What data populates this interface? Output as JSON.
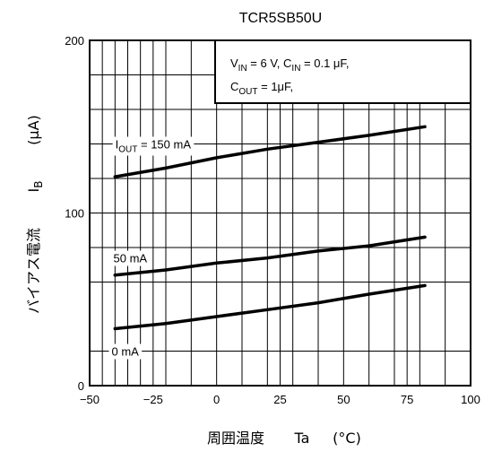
{
  "chart_data": {
    "type": "line",
    "title": "TCR5SB50U",
    "xlabel": "周囲温度 Ta (°C)",
    "xlabel_parts": [
      "周囲温度",
      "Ta",
      "(°C)"
    ],
    "ylabel": "バイアス電流 IB (μA)",
    "ylabel_parts": {
      "jp": "バイアス電流",
      "sym": "I",
      "sub": "B",
      "unit": "(μA)"
    },
    "xlim": [
      -50,
      100
    ],
    "ylim": [
      0,
      200
    ],
    "x_ticks": [
      -50,
      -25,
      0,
      25,
      50,
      75,
      100
    ],
    "x_tick_labels": [
      "−50",
      "−25",
      "0",
      "25",
      "50",
      "75",
      "100"
    ],
    "y_tick_labels": [
      {
        "value": 0,
        "label": "0"
      },
      {
        "value": 100,
        "label": "100"
      },
      {
        "value": 200,
        "label": "200"
      }
    ],
    "y_grid_values": [
      20,
      60,
      80,
      120,
      140,
      160,
      180
    ],
    "x_grid_values": [
      -45,
      -40,
      -35,
      -30,
      -25,
      -20,
      -10,
      0,
      10,
      20,
      25,
      30,
      40,
      50,
      60,
      70,
      75,
      80,
      90
    ],
    "conditions": [
      {
        "parts": [
          [
            "V",
            ""
          ],
          [
            "IN",
            "sub"
          ],
          [
            " = 6 V, C",
            ""
          ],
          [
            "IN",
            "sub"
          ],
          [
            " = 0.1 μF,",
            ""
          ]
        ]
      },
      {
        "parts": [
          [
            "C",
            ""
          ],
          [
            "OUT",
            "sub"
          ],
          [
            " = 1μF,",
            ""
          ]
        ]
      }
    ],
    "series": [
      {
        "name": "IOUT = 150 mA",
        "label_parts": [
          [
            "I",
            ""
          ],
          [
            "OUT",
            "sub"
          ],
          [
            " = 150 mA",
            ""
          ]
        ],
        "label_at": [
          -25,
          140
        ],
        "x": [
          -40,
          -20,
          0,
          20,
          40,
          60,
          82
        ],
        "y": [
          121,
          126,
          132,
          137,
          141,
          145,
          150
        ]
      },
      {
        "name": "50 mA",
        "label_parts": [
          [
            "50 mA",
            ""
          ]
        ],
        "label_at": [
          -34,
          74
        ],
        "x": [
          -40,
          -20,
          0,
          20,
          40,
          60,
          82
        ],
        "y": [
          64,
          67,
          71,
          74,
          78,
          81,
          86
        ]
      },
      {
        "name": "0 mA",
        "label_parts": [
          [
            "0 mA",
            ""
          ]
        ],
        "label_at": [
          -36,
          20
        ],
        "x": [
          -40,
          -20,
          0,
          20,
          40,
          60,
          82
        ],
        "y": [
          33,
          36,
          40,
          44,
          48,
          53,
          58
        ]
      }
    ],
    "grid": true,
    "legend": "none"
  }
}
